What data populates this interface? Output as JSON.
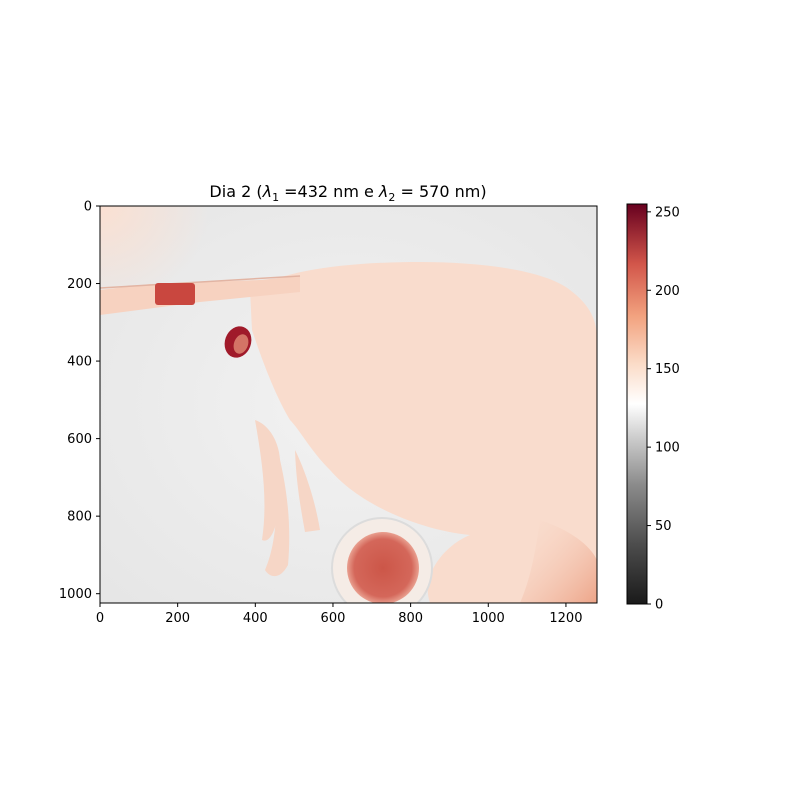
{
  "chart_data": {
    "type": "heatmap",
    "title": "Dia 2 (λ1 =432 nm e λ2 = 570 nm)",
    "title_parts": {
      "prefix": "Dia 2 (",
      "sym1": "λ",
      "sub1": "1",
      "mid": " =432 nm e ",
      "sym2": "λ",
      "sub2": "2",
      "suffix": " = 570 nm)"
    },
    "xlabel": "",
    "ylabel": "",
    "xlim": [
      0,
      1280
    ],
    "ylim": [
      1024,
      0
    ],
    "x_ticks": [
      0,
      200,
      400,
      600,
      800,
      1000,
      1200
    ],
    "y_ticks": [
      0,
      200,
      400,
      600,
      800,
      1000
    ],
    "colormap": "RdGy_r",
    "colorbar": {
      "range": [
        0,
        255
      ],
      "ticks": [
        0,
        50,
        100,
        150,
        200,
        250
      ]
    },
    "grid": false,
    "regions": [
      {
        "name": "background",
        "approx_value": 120,
        "color": "#eeeeee"
      },
      {
        "name": "upper-left glow",
        "approx_value": 150,
        "color": "#fbe4d8"
      },
      {
        "name": "body",
        "approx_value": 155,
        "color": "#f9dccd"
      },
      {
        "name": "tube-band",
        "approx_value": 160,
        "color": "#f7d2c0"
      },
      {
        "name": "tube-spot",
        "approx_value": 210,
        "color": "#c9473f"
      },
      {
        "name": "eye",
        "approx_value": 230,
        "color": "#a01a2a"
      },
      {
        "name": "round-spot",
        "approx_value": 200,
        "color": "#cf5a4c"
      },
      {
        "name": "lower-right region",
        "approx_value": 175,
        "color": "#f0b59e"
      }
    ]
  }
}
